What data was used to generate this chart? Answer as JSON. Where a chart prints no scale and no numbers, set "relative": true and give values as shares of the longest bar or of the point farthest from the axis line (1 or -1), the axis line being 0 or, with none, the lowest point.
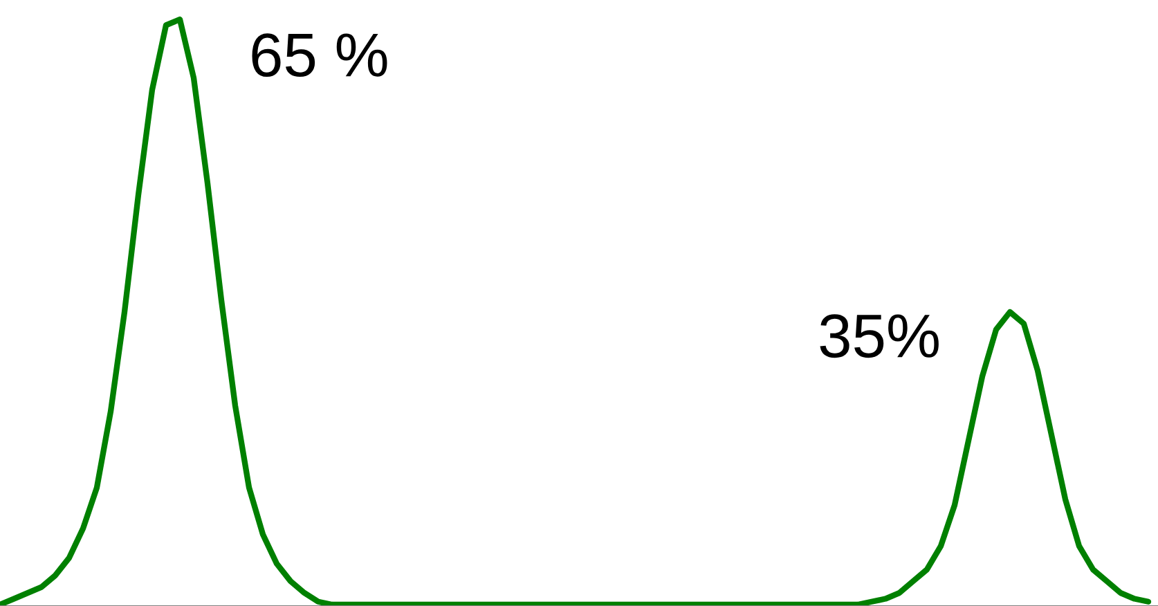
{
  "chart_data": {
    "type": "line",
    "relative": true,
    "color": "#008000",
    "categories": [
      null,
      null,
      null,
      null,
      null,
      null,
      null,
      null,
      null,
      null,
      null,
      null,
      null,
      null,
      null,
      null,
      null,
      null,
      null,
      null,
      null,
      null,
      null,
      null,
      null,
      null,
      null,
      null,
      null,
      null,
      null,
      null,
      null,
      null,
      null,
      null,
      null,
      null,
      null,
      null,
      null,
      null,
      null,
      null,
      null,
      null,
      null,
      null,
      null,
      null,
      null,
      null,
      null,
      null,
      null,
      null,
      null,
      null,
      null,
      null,
      null,
      null,
      null,
      null,
      null,
      null,
      null,
      null,
      null,
      null,
      null,
      null,
      null,
      null,
      null,
      null,
      null,
      null,
      null,
      null,
      null,
      null,
      null,
      null
    ],
    "values": [
      0.0,
      0.01,
      0.02,
      0.03,
      0.05,
      0.08,
      0.13,
      0.2,
      0.33,
      0.5,
      0.7,
      0.88,
      0.99,
      1.0,
      0.9,
      0.72,
      0.52,
      0.34,
      0.2,
      0.12,
      0.07,
      0.04,
      0.02,
      0.005,
      0.0,
      0,
      0,
      0,
      0,
      0,
      0,
      0,
      0,
      0,
      0,
      0,
      0,
      0,
      0,
      0,
      0,
      0,
      0,
      0,
      0,
      0,
      0,
      0,
      0,
      0,
      0,
      0,
      0,
      0,
      0,
      0,
      0,
      0,
      0,
      0,
      0,
      0,
      0.0,
      0.005,
      0.01,
      0.02,
      0.04,
      0.06,
      0.1,
      0.17,
      0.28,
      0.39,
      0.47,
      0.5,
      0.48,
      0.4,
      0.29,
      0.18,
      0.1,
      0.06,
      0.04,
      0.02,
      0.01,
      0.005
    ],
    "annotations": [
      "65 %",
      "35%"
    ],
    "grid": false
  }
}
